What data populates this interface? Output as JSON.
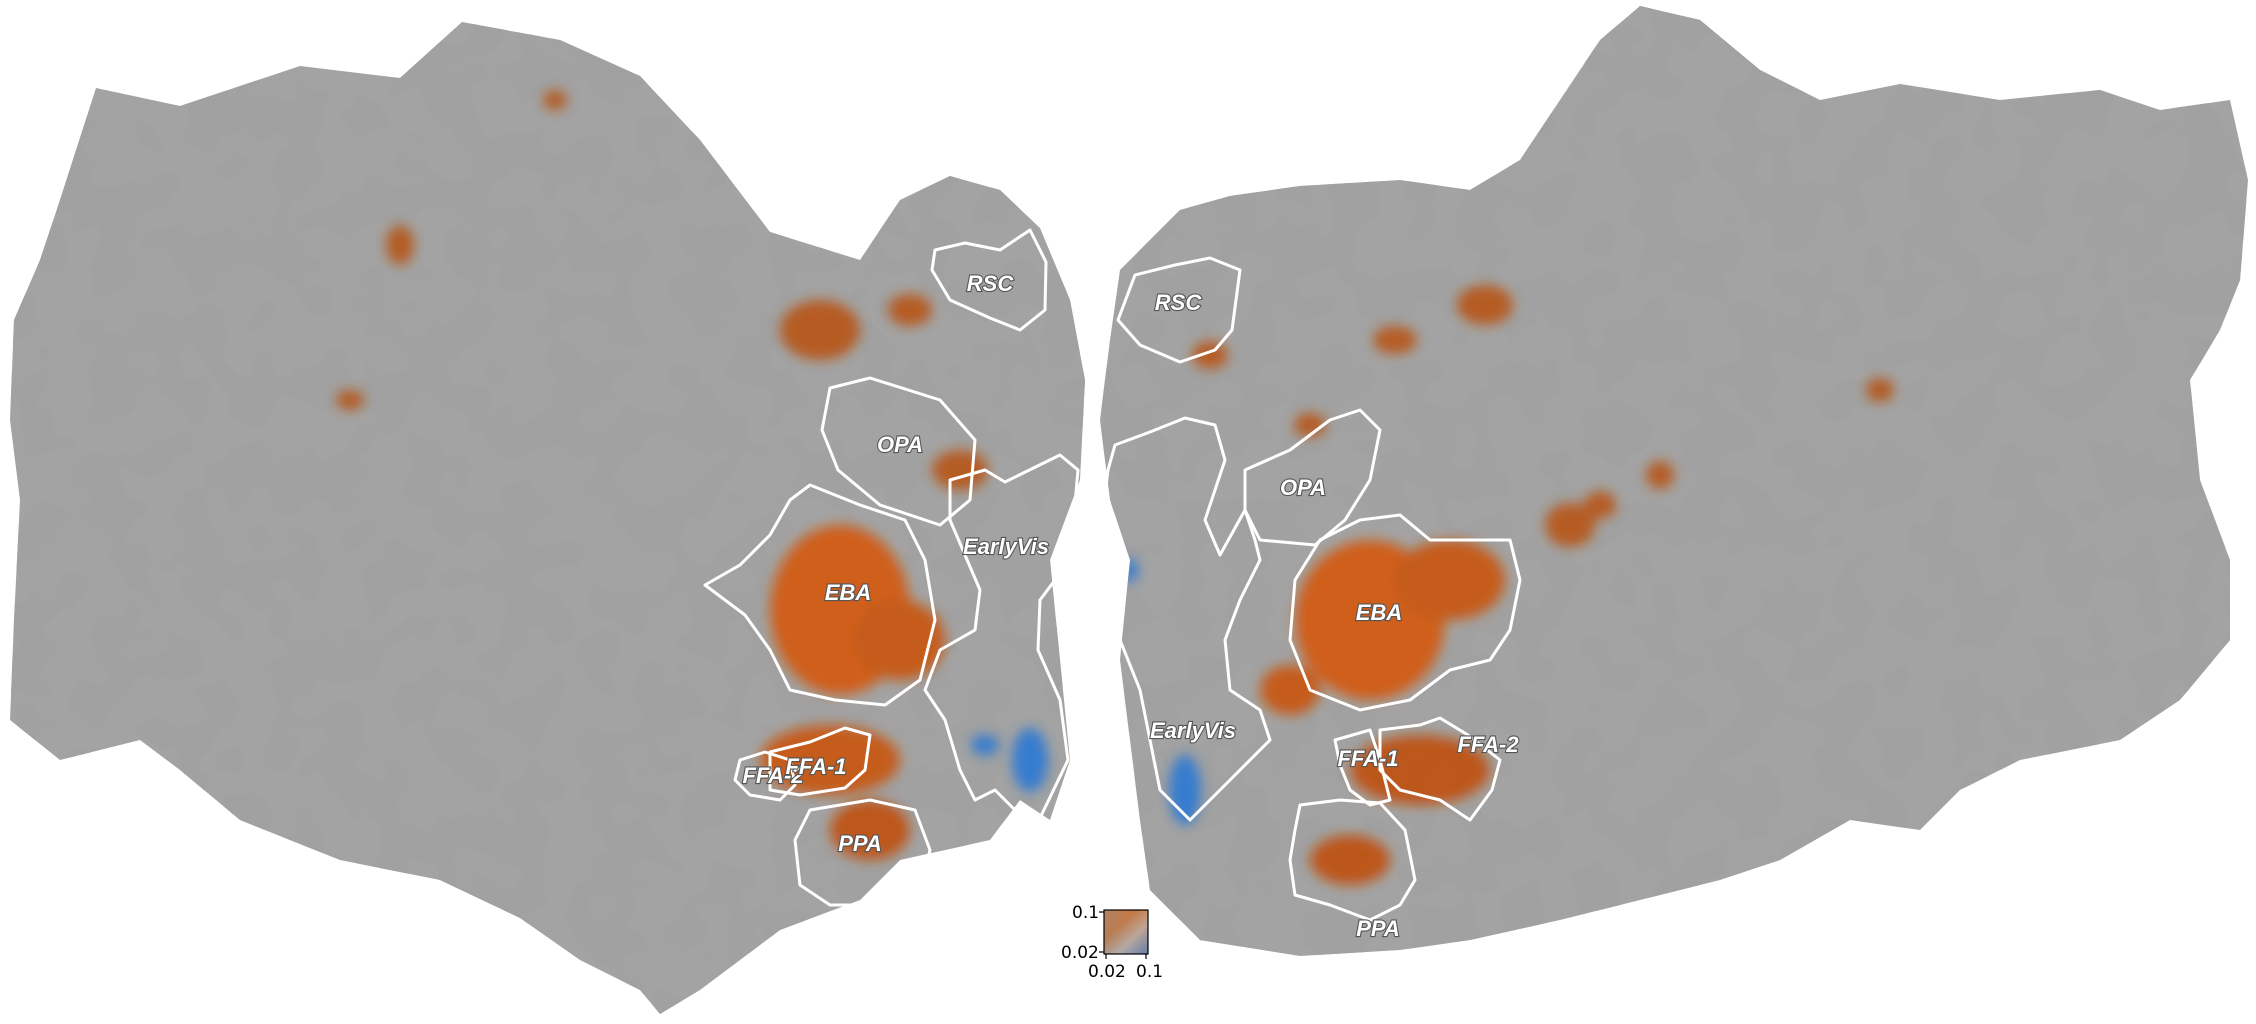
{
  "colors": {
    "background": "#ffffff",
    "sulci": "#5b5b5b",
    "gyri": "#a3a3a3",
    "positive": "#d4580a",
    "negative": "#2a78d4",
    "roi_outline": "#ffffff"
  },
  "left_hemisphere": {
    "rois": [
      "RSC",
      "OPA",
      "EarlyVis",
      "EBA",
      "FFA-2",
      "FFA-1",
      "PPA"
    ]
  },
  "right_hemisphere": {
    "rois": [
      "RSC",
      "OPA",
      "EBA",
      "EarlyVis",
      "FFA-1",
      "FFA-2",
      "PPA"
    ]
  },
  "colorbar": {
    "y_top": "0.1",
    "y_bottom": "0.02",
    "x_left": "0.02",
    "x_right": "0.1"
  }
}
